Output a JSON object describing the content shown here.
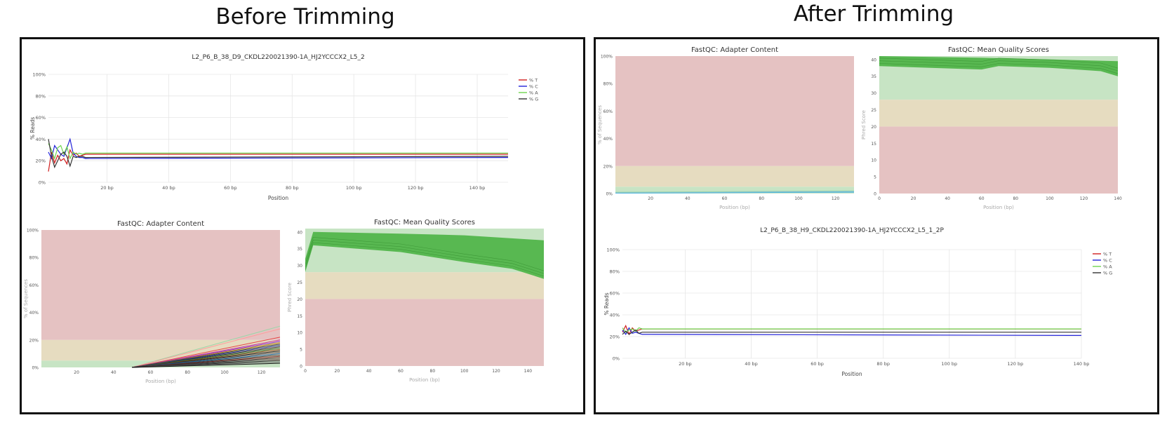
{
  "titles": {
    "before": "Before Trimming",
    "after": "After Trimming"
  },
  "colors": {
    "t": "#d11f1f",
    "c": "#2323d8",
    "a": "#6fd650",
    "g": "#333333",
    "zone_red": "#e5c2c2",
    "zone_yellow": "#e6dcc0",
    "zone_green": "#c7e4c4",
    "quality_band": "#52b54b"
  },
  "chart_data": [
    {
      "id": "before_seq",
      "type": "line",
      "title": "L2_P6_B_38_D9_CKDL220021390-1A_HJ2YCCCX2_L5_2",
      "xlabel": "Position",
      "ylabel": "% Reads",
      "xlim": [
        1,
        150
      ],
      "ylim": [
        0,
        100
      ],
      "xticks": [
        "20 bp",
        "40 bp",
        "60 bp",
        "80 bp",
        "100 bp",
        "120 bp",
        "140 bp"
      ],
      "xtick_values": [
        20,
        40,
        60,
        80,
        100,
        120,
        140
      ],
      "yticks": [
        "0%",
        "20%",
        "40%",
        "60%",
        "80%",
        "100%"
      ],
      "ytick_values": [
        0,
        20,
        40,
        60,
        80,
        100
      ],
      "legend_position": "top-right",
      "series": [
        {
          "name": "% T",
          "color": "#d11f1f",
          "x": [
            1,
            2,
            3,
            4,
            5,
            6,
            7,
            8,
            9,
            10,
            11,
            12,
            13,
            150
          ],
          "values": [
            10,
            28,
            18,
            25,
            20,
            22,
            17,
            30,
            25,
            27,
            24,
            25,
            26,
            26
          ]
        },
        {
          "name": "% C",
          "color": "#2323d8",
          "x": [
            1,
            2,
            3,
            4,
            5,
            6,
            7,
            8,
            9,
            10,
            11,
            12,
            13,
            150
          ],
          "values": [
            28,
            22,
            34,
            30,
            26,
            24,
            32,
            40,
            27,
            24,
            23,
            23,
            22,
            23
          ]
        },
        {
          "name": "% A",
          "color": "#6fd650",
          "x": [
            1,
            2,
            3,
            4,
            5,
            6,
            7,
            8,
            9,
            10,
            11,
            12,
            13,
            150
          ],
          "values": [
            36,
            30,
            22,
            32,
            34,
            26,
            33,
            22,
            28,
            26,
            27,
            26,
            27,
            27
          ]
        },
        {
          "name": "% G",
          "color": "#333333",
          "x": [
            1,
            2,
            3,
            4,
            5,
            6,
            7,
            8,
            9,
            10,
            11,
            12,
            13,
            150
          ],
          "values": [
            40,
            24,
            14,
            20,
            26,
            28,
            24,
            15,
            24,
            23,
            24,
            24,
            23,
            24
          ]
        }
      ]
    },
    {
      "id": "before_adapter",
      "type": "line",
      "title": "FastQC: Adapter Content",
      "xlabel": "Position (bp)",
      "ylabel": "% of Sequences",
      "xlim": [
        1,
        130
      ],
      "ylim": [
        0,
        100
      ],
      "xticks": [
        "20",
        "40",
        "60",
        "80",
        "100",
        "120"
      ],
      "xtick_values": [
        20,
        40,
        60,
        80,
        100,
        120
      ],
      "yticks": [
        "0%",
        "20%",
        "40%",
        "60%",
        "80%",
        "100%"
      ],
      "ytick_values": [
        0,
        20,
        40,
        60,
        80,
        100
      ],
      "zones": [
        {
          "from": 0,
          "to": 5,
          "color": "green"
        },
        {
          "from": 5,
          "to": 20,
          "color": "yellow"
        },
        {
          "from": 20,
          "to": 100,
          "color": "red"
        }
      ],
      "line_onset": 50,
      "line_end_values": [
        30,
        28,
        22,
        20,
        19,
        18,
        17,
        16,
        15,
        14,
        13,
        12,
        11,
        10,
        9,
        8,
        7,
        6,
        5,
        4,
        3
      ],
      "line_colors": [
        "#9bd6a8",
        "#ff9c9c",
        "#e64545",
        "#c73a9b",
        "#8a2bd0",
        "#b8860b",
        "#3a3a3a",
        "#223a9e",
        "#2d2d2d",
        "#3a7a3a",
        "#7f4e1f",
        "#1a1a1a",
        "#555",
        "#0b5b9b",
        "#3e3e3e",
        "#6b2222",
        "#333",
        "#4a4a4a",
        "#222",
        "#666",
        "#111"
      ]
    },
    {
      "id": "before_quality",
      "type": "line",
      "title": "FastQC: Mean Quality Scores",
      "xlabel": "Position (bp)",
      "ylabel": "Phred Score",
      "xlim": [
        0,
        150
      ],
      "ylim": [
        0,
        41
      ],
      "xticks": [
        "0",
        "20",
        "40",
        "60",
        "80",
        "100",
        "120",
        "140"
      ],
      "xtick_values": [
        0,
        20,
        40,
        60,
        80,
        100,
        120,
        140
      ],
      "yticks": [
        "0",
        "5",
        "10",
        "15",
        "20",
        "25",
        "30",
        "35",
        "40"
      ],
      "ytick_values": [
        0,
        5,
        10,
        15,
        20,
        25,
        30,
        35,
        40
      ],
      "zones": [
        {
          "from": 0,
          "to": 20,
          "color": "red"
        },
        {
          "from": 20,
          "to": 28,
          "color": "yellow"
        },
        {
          "from": 28,
          "to": 41,
          "color": "green"
        }
      ],
      "band_top": [
        [
          0,
          32
        ],
        [
          5,
          40
        ],
        [
          60,
          39.5
        ],
        [
          100,
          39
        ],
        [
          150,
          37.5
        ]
      ],
      "band_bottom": [
        [
          0,
          28
        ],
        [
          5,
          36
        ],
        [
          60,
          34
        ],
        [
          100,
          31
        ],
        [
          130,
          29
        ],
        [
          150,
          26
        ]
      ]
    },
    {
      "id": "after_adapter",
      "type": "line",
      "title": "FastQC: Adapter Content",
      "xlabel": "Position (bp)",
      "ylabel": "% of Sequences",
      "xlim": [
        1,
        130
      ],
      "ylim": [
        0,
        100
      ],
      "xticks": [
        "20",
        "40",
        "60",
        "80",
        "100",
        "120"
      ],
      "xtick_values": [
        20,
        40,
        60,
        80,
        100,
        120
      ],
      "yticks": [
        "0%",
        "20%",
        "40%",
        "60%",
        "80%",
        "100%"
      ],
      "ytick_values": [
        0,
        20,
        40,
        60,
        80,
        100
      ],
      "zones": [
        {
          "from": 0,
          "to": 5,
          "color": "green"
        },
        {
          "from": 5,
          "to": 20,
          "color": "yellow"
        },
        {
          "from": 20,
          "to": 100,
          "color": "red"
        }
      ],
      "line_values": [
        1,
        1,
        1,
        1
      ]
    },
    {
      "id": "after_quality",
      "type": "line",
      "title": "FastQC: Mean Quality Scores",
      "xlabel": "Position (bp)",
      "ylabel": "Phred Score",
      "xlim": [
        0,
        140
      ],
      "ylim": [
        0,
        41
      ],
      "xticks": [
        "0",
        "20",
        "40",
        "60",
        "80",
        "100",
        "120",
        "140"
      ],
      "xtick_values": [
        0,
        20,
        40,
        60,
        80,
        100,
        120,
        140
      ],
      "yticks": [
        "0",
        "5",
        "10",
        "15",
        "20",
        "25",
        "30",
        "35",
        "40"
      ],
      "ytick_values": [
        0,
        5,
        10,
        15,
        20,
        25,
        30,
        35,
        40
      ],
      "zones": [
        {
          "from": 0,
          "to": 20,
          "color": "red"
        },
        {
          "from": 20,
          "to": 28,
          "color": "yellow"
        },
        {
          "from": 28,
          "to": 41,
          "color": "green"
        }
      ],
      "band_top": [
        [
          0,
          41
        ],
        [
          60,
          40.5
        ],
        [
          100,
          40
        ],
        [
          140,
          39.5
        ]
      ],
      "band_bottom": [
        [
          0,
          38
        ],
        [
          30,
          37.5
        ],
        [
          60,
          37
        ],
        [
          70,
          38
        ],
        [
          100,
          37.5
        ],
        [
          130,
          36.5
        ],
        [
          140,
          35
        ]
      ]
    },
    {
      "id": "after_seq",
      "type": "line",
      "title": "L2_P6_B_38_H9_CKDL220021390-1A_HJ2YCCCX2_L5_1_2P",
      "xlabel": "Position",
      "ylabel": "% Reads",
      "xlim": [
        1,
        140
      ],
      "ylim": [
        0,
        100
      ],
      "xticks": [
        "20 bp",
        "40 bp",
        "60 bp",
        "80 bp",
        "100 bp",
        "120 bp",
        "140 bp"
      ],
      "xtick_values": [
        20,
        40,
        60,
        80,
        100,
        120,
        140
      ],
      "yticks": [
        "0%",
        "20%",
        "40%",
        "60%",
        "80%",
        "100%"
      ],
      "ytick_values": [
        0,
        20,
        40,
        60,
        80,
        100
      ],
      "legend_position": "top-right",
      "series": [
        {
          "name": "% T",
          "color": "#d11f1f",
          "x": [
            1,
            2,
            3,
            4,
            5,
            6,
            7,
            8,
            9,
            140
          ],
          "values": [
            24,
            30,
            22,
            28,
            25,
            26,
            27,
            27,
            27,
            27
          ]
        },
        {
          "name": "% C",
          "color": "#2323d8",
          "x": [
            1,
            2,
            3,
            4,
            5,
            6,
            7,
            8,
            9,
            140
          ],
          "values": [
            26,
            22,
            28,
            23,
            24,
            23,
            22,
            22,
            22,
            21
          ]
        },
        {
          "name": "% A",
          "color": "#6fd650",
          "x": [
            1,
            2,
            3,
            4,
            5,
            6,
            7,
            8,
            9,
            140
          ],
          "values": [
            28,
            24,
            26,
            27,
            25,
            28,
            27,
            27,
            27,
            27
          ]
        },
        {
          "name": "% G",
          "color": "#333333",
          "x": [
            1,
            2,
            3,
            4,
            5,
            6,
            7,
            8,
            9,
            140
          ],
          "values": [
            22,
            25,
            22,
            24,
            26,
            23,
            24,
            24,
            24,
            24
          ]
        }
      ]
    }
  ]
}
